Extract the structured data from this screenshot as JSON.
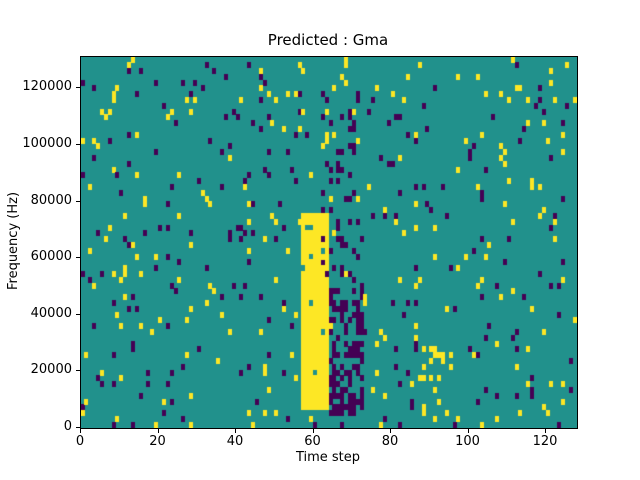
{
  "figure": {
    "background": "#ffffff"
  },
  "chart_data": {
    "type": "heatmap",
    "title": "Predicted : Gma",
    "xlabel": "Time step",
    "ylabel": "Frequency (Hz)",
    "xlim": [
      0,
      128
    ],
    "ylim": [
      0,
      131072
    ],
    "x_ticks": [
      0,
      20,
      40,
      60,
      80,
      100,
      120
    ],
    "y_ticks": [
      0,
      20000,
      40000,
      60000,
      80000,
      100000,
      120000
    ],
    "grid": {
      "cols": 128,
      "rows": 64
    },
    "legend": null,
    "grid_lines": false,
    "colors": {
      "background": "#21918c",
      "high": "#fde725",
      "low": "#440154",
      "axis": "#000000"
    },
    "noise": {
      "seed": 1337,
      "high_density": 0.028,
      "low_density": 0.028
    },
    "features": [
      {
        "name": "solid-yellow-band",
        "x": [
          57,
          63
        ],
        "freq": [
          7000,
          76000
        ],
        "value": "high",
        "density": 0.95
      },
      {
        "name": "dense-purple-cluster",
        "x": [
          64,
          72
        ],
        "freq": [
          5000,
          52000
        ],
        "value": "low",
        "density": 0.5
      },
      {
        "name": "sparse-purple-upper",
        "x": [
          62,
          71
        ],
        "freq": [
          52000,
          112000
        ],
        "value": "low",
        "density": 0.12
      },
      {
        "name": "sparse-yellow-patch",
        "x": [
          88,
          96
        ],
        "freq": [
          8000,
          30000
        ],
        "value": "high",
        "density": 0.15
      }
    ]
  }
}
